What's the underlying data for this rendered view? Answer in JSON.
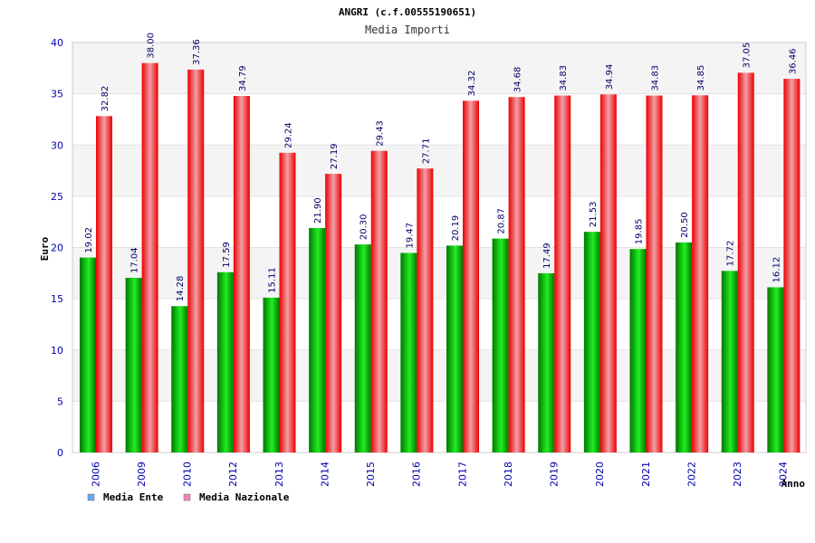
{
  "chart_data": {
    "type": "bar",
    "title": "ANGRI (c.f.00555190651)",
    "subtitle": "Media Importi",
    "xlabel": "Anno",
    "ylabel": "Euro",
    "ylim": [
      0,
      40
    ],
    "yticks": [
      0,
      5,
      10,
      15,
      20,
      25,
      30,
      35,
      40
    ],
    "grid": true,
    "legend_position": "bottom-left",
    "categories": [
      "2006",
      "2009",
      "2010",
      "2012",
      "2013",
      "2014",
      "2015",
      "2016",
      "2017",
      "2018",
      "2019",
      "2020",
      "2021",
      "2022",
      "2023",
      "2024"
    ],
    "series": [
      {
        "name": "Media Ente",
        "color": "#00cc00",
        "legend_color": "#66aaee",
        "values": [
          19.02,
          17.04,
          14.28,
          17.59,
          15.11,
          21.9,
          20.3,
          19.47,
          20.19,
          20.87,
          17.49,
          21.53,
          19.85,
          20.5,
          17.72,
          16.12
        ],
        "labels": [
          "19.02",
          "17.04",
          "14.28",
          "17.59",
          "15.11",
          "21.90",
          "20.30",
          "19.47",
          "20.19",
          "20.87",
          "17.49",
          "21.53",
          "19.85",
          "20.50",
          "17.72",
          "16.12"
        ]
      },
      {
        "name": "Media Nazionale",
        "color": "#ee0000",
        "legend_color": "#ee88bb",
        "values": [
          32.82,
          38.0,
          37.36,
          34.79,
          29.24,
          27.19,
          29.43,
          27.71,
          34.32,
          34.68,
          34.83,
          34.94,
          34.83,
          34.85,
          37.05,
          36.46
        ],
        "labels": [
          "32.82",
          "38.00",
          "37.36",
          "34.79",
          "29.24",
          "27.19",
          "29.43",
          "27.71",
          "34.32",
          "34.68",
          "34.83",
          "34.94",
          "34.83",
          "34.85",
          "37.05",
          "36.46"
        ]
      }
    ]
  }
}
